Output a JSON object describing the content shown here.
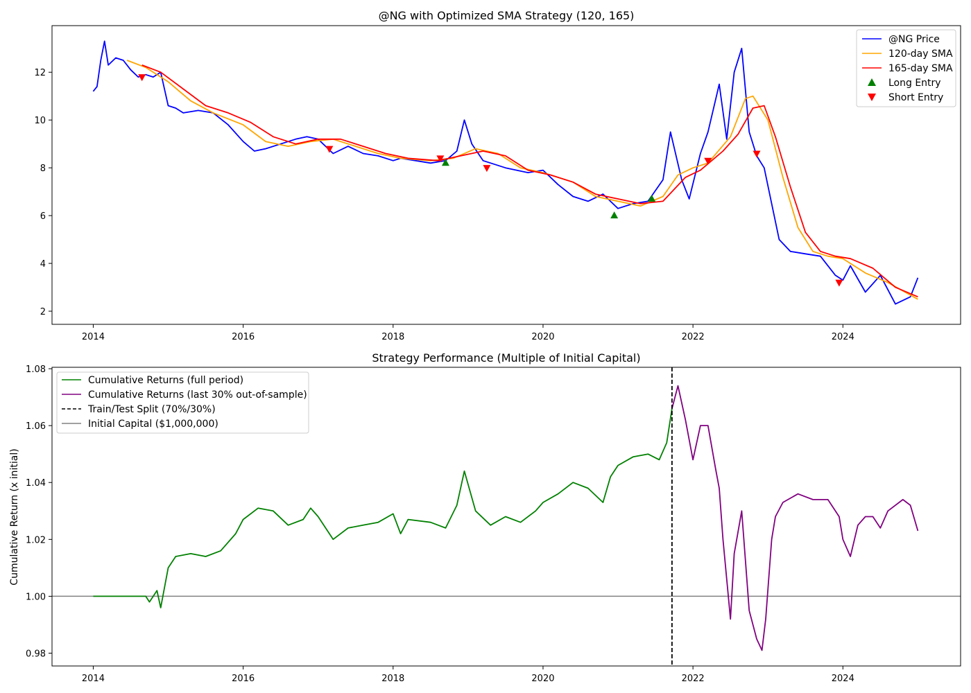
{
  "chart_data": [
    {
      "type": "line",
      "title": "@NG with Optimized SMA Strategy (120, 165)",
      "xlabel": "",
      "ylabel": "",
      "xlim": [
        2013.45,
        2025.57
      ],
      "ylim": [
        1.45,
        13.95
      ],
      "xticks": [
        2014,
        2016,
        2018,
        2020,
        2022,
        2024
      ],
      "xtick_labels": [
        "2014",
        "2016",
        "2018",
        "2020",
        "2022",
        "2024"
      ],
      "yticks": [
        2,
        4,
        6,
        8,
        10,
        12
      ],
      "ytick_labels": [
        "2",
        "4",
        "6",
        "8",
        "10",
        "12"
      ],
      "grid": false,
      "legend": "top-right",
      "series": [
        {
          "name": "@NG Price",
          "color": "#0000ff",
          "x": [
            2014.0,
            2014.05,
            2014.1,
            2014.15,
            2014.2,
            2014.3,
            2014.4,
            2014.5,
            2014.6,
            2014.7,
            2014.8,
            2014.9,
            2015.0,
            2015.1,
            2015.2,
            2015.4,
            2015.6,
            2015.8,
            2016.0,
            2016.15,
            2016.3,
            2016.5,
            2016.7,
            2016.85,
            2017.0,
            2017.2,
            2017.4,
            2017.6,
            2017.8,
            2018.0,
            2018.1,
            2018.3,
            2018.5,
            2018.7,
            2018.85,
            2018.95,
            2019.05,
            2019.2,
            2019.5,
            2019.8,
            2020.0,
            2020.2,
            2020.4,
            2020.6,
            2020.8,
            2021.0,
            2021.2,
            2021.4,
            2021.6,
            2021.7,
            2021.85,
            2021.95,
            2022.1,
            2022.2,
            2022.35,
            2022.45,
            2022.55,
            2022.65,
            2022.75,
            2022.85,
            2022.95,
            2023.05,
            2023.15,
            2023.3,
            2023.5,
            2023.7,
            2023.9,
            2024.0,
            2024.1,
            2024.3,
            2024.5,
            2024.7,
            2024.9,
            2025.0
          ],
          "values": [
            11.2,
            11.4,
            12.5,
            13.3,
            12.3,
            12.6,
            12.5,
            12.1,
            11.8,
            11.9,
            11.8,
            12.0,
            10.6,
            10.5,
            10.3,
            10.4,
            10.3,
            9.8,
            9.1,
            8.7,
            8.8,
            9.0,
            9.2,
            9.3,
            9.2,
            8.6,
            8.9,
            8.6,
            8.5,
            8.3,
            8.4,
            8.3,
            8.2,
            8.3,
            8.7,
            10.0,
            9.0,
            8.3,
            8.0,
            7.8,
            7.9,
            7.3,
            6.8,
            6.6,
            6.9,
            6.3,
            6.5,
            6.6,
            7.5,
            9.5,
            7.5,
            6.7,
            8.6,
            9.5,
            11.5,
            9.2,
            12.0,
            13.0,
            9.5,
            8.5,
            8.0,
            6.5,
            5.0,
            4.5,
            4.4,
            4.3,
            3.5,
            3.3,
            3.9,
            2.8,
            3.5,
            2.3,
            2.6,
            3.4
          ]
        },
        {
          "name": "120-day SMA",
          "color": "#ffa500",
          "x": [
            2014.45,
            2014.7,
            2015.0,
            2015.3,
            2015.6,
            2016.0,
            2016.3,
            2016.6,
            2016.9,
            2017.2,
            2017.5,
            2017.8,
            2018.1,
            2018.5,
            2018.8,
            2019.1,
            2019.4,
            2019.7,
            2020.0,
            2020.4,
            2020.7,
            2021.0,
            2021.3,
            2021.6,
            2021.8,
            2022.0,
            2022.2,
            2022.5,
            2022.7,
            2022.8,
            2023.0,
            2023.2,
            2023.4,
            2023.6,
            2023.8,
            2024.0,
            2024.3,
            2024.6,
            2025.0
          ],
          "values": [
            12.5,
            12.2,
            11.6,
            10.8,
            10.3,
            9.8,
            9.1,
            8.9,
            9.1,
            9.2,
            8.9,
            8.6,
            8.4,
            8.3,
            8.4,
            8.8,
            8.6,
            8.0,
            7.8,
            7.4,
            6.8,
            6.6,
            6.4,
            6.8,
            7.7,
            8.0,
            8.2,
            9.3,
            10.9,
            11.0,
            10.0,
            7.6,
            5.5,
            4.5,
            4.3,
            4.2,
            3.6,
            3.2,
            2.5
          ]
        },
        {
          "name": "165-day SMA",
          "color": "#ff0000",
          "x": [
            2014.65,
            2014.9,
            2015.2,
            2015.5,
            2015.8,
            2016.1,
            2016.4,
            2016.7,
            2017.0,
            2017.3,
            2017.6,
            2017.9,
            2018.2,
            2018.6,
            2018.9,
            2019.2,
            2019.5,
            2019.8,
            2020.1,
            2020.4,
            2020.7,
            2021.0,
            2021.3,
            2021.6,
            2021.9,
            2022.1,
            2022.4,
            2022.6,
            2022.8,
            2022.95,
            2023.1,
            2023.3,
            2023.5,
            2023.7,
            2023.9,
            2024.1,
            2024.4,
            2024.7,
            2025.0
          ],
          "values": [
            12.3,
            12.0,
            11.3,
            10.6,
            10.3,
            9.9,
            9.3,
            9.0,
            9.2,
            9.2,
            8.9,
            8.6,
            8.4,
            8.3,
            8.5,
            8.7,
            8.5,
            7.9,
            7.7,
            7.4,
            6.9,
            6.7,
            6.5,
            6.6,
            7.6,
            7.9,
            8.7,
            9.4,
            10.5,
            10.6,
            9.3,
            7.2,
            5.3,
            4.5,
            4.3,
            4.2,
            3.8,
            3.0,
            2.6
          ]
        }
      ],
      "long_entries": {
        "name": "Long Entry",
        "color": "#008000",
        "points": [
          [
            2018.7,
            8.2
          ],
          [
            2020.95,
            6.0
          ],
          [
            2021.45,
            6.7
          ]
        ]
      },
      "short_entries": {
        "name": "Short Entry",
        "color": "#ff0000",
        "points": [
          [
            2014.65,
            11.8
          ],
          [
            2017.15,
            8.8
          ],
          [
            2018.63,
            8.4
          ],
          [
            2019.25,
            8.0
          ],
          [
            2022.2,
            8.3
          ],
          [
            2022.85,
            8.6
          ],
          [
            2023.95,
            3.2
          ]
        ]
      }
    },
    {
      "type": "line",
      "title": "Strategy Performance (Multiple of Initial Capital)",
      "xlabel": "",
      "ylabel": "Cumulative Return (x initial)",
      "xlim": [
        2013.45,
        2025.57
      ],
      "ylim": [
        0.9755,
        1.0805
      ],
      "xticks": [
        2014,
        2016,
        2018,
        2020,
        2022,
        2024
      ],
      "xtick_labels": [
        "2014",
        "2016",
        "2018",
        "2020",
        "2022",
        "2024"
      ],
      "yticks": [
        0.98,
        1.0,
        1.02,
        1.04,
        1.06,
        1.08
      ],
      "ytick_labels": [
        "0.98",
        "1.00",
        "1.02",
        "1.04",
        "1.06",
        "1.08"
      ],
      "grid": false,
      "legend": "top-left",
      "series": [
        {
          "name": "Cumulative Returns (full period)",
          "color": "#008000",
          "x": [
            2014.0,
            2014.7,
            2014.75,
            2014.85,
            2014.9,
            2015.0,
            2015.1,
            2015.3,
            2015.5,
            2015.7,
            2015.9,
            2016.0,
            2016.2,
            2016.4,
            2016.6,
            2016.8,
            2016.9,
            2017.0,
            2017.2,
            2017.4,
            2017.6,
            2017.8,
            2018.0,
            2018.1,
            2018.2,
            2018.5,
            2018.7,
            2018.85,
            2018.95,
            2019.1,
            2019.3,
            2019.5,
            2019.7,
            2019.9,
            2020.0,
            2020.2,
            2020.4,
            2020.6,
            2020.8,
            2020.9,
            2021.0,
            2021.2,
            2021.4,
            2021.55,
            2021.65,
            2021.72
          ],
          "values": [
            1.0,
            1.0,
            0.998,
            1.002,
            0.996,
            1.01,
            1.014,
            1.015,
            1.014,
            1.016,
            1.022,
            1.027,
            1.031,
            1.03,
            1.025,
            1.027,
            1.031,
            1.028,
            1.02,
            1.024,
            1.025,
            1.026,
            1.029,
            1.022,
            1.027,
            1.026,
            1.024,
            1.032,
            1.044,
            1.03,
            1.025,
            1.028,
            1.026,
            1.03,
            1.033,
            1.036,
            1.04,
            1.038,
            1.033,
            1.042,
            1.046,
            1.049,
            1.05,
            1.048,
            1.054,
            1.066
          ]
        },
        {
          "name": "Cumulative Returns (last 30% out-of-sample)",
          "color": "#800080",
          "x": [
            2021.72,
            2021.8,
            2021.9,
            2022.0,
            2022.1,
            2022.2,
            2022.3,
            2022.35,
            2022.4,
            2022.5,
            2022.55,
            2022.65,
            2022.75,
            2022.85,
            2022.92,
            2022.97,
            2023.05,
            2023.1,
            2023.2,
            2023.4,
            2023.6,
            2023.8,
            2023.95,
            2024.0,
            2024.1,
            2024.2,
            2024.3,
            2024.4,
            2024.5,
            2024.6,
            2024.8,
            2024.9,
            2025.0
          ],
          "values": [
            1.066,
            1.074,
            1.062,
            1.048,
            1.06,
            1.06,
            1.045,
            1.038,
            1.02,
            0.992,
            1.015,
            1.03,
            0.995,
            0.985,
            0.981,
            0.992,
            1.02,
            1.028,
            1.033,
            1.036,
            1.034,
            1.034,
            1.028,
            1.02,
            1.014,
            1.025,
            1.028,
            1.028,
            1.024,
            1.03,
            1.034,
            1.032,
            1.023
          ]
        }
      ],
      "split_line": {
        "name": "Train/Test Split (70%/30%)",
        "x": 2021.72,
        "color": "#000000",
        "style": "dashed"
      },
      "baseline": {
        "name": "Initial Capital ($1,000,000)",
        "y": 1.0,
        "color": "#808080"
      }
    }
  ]
}
